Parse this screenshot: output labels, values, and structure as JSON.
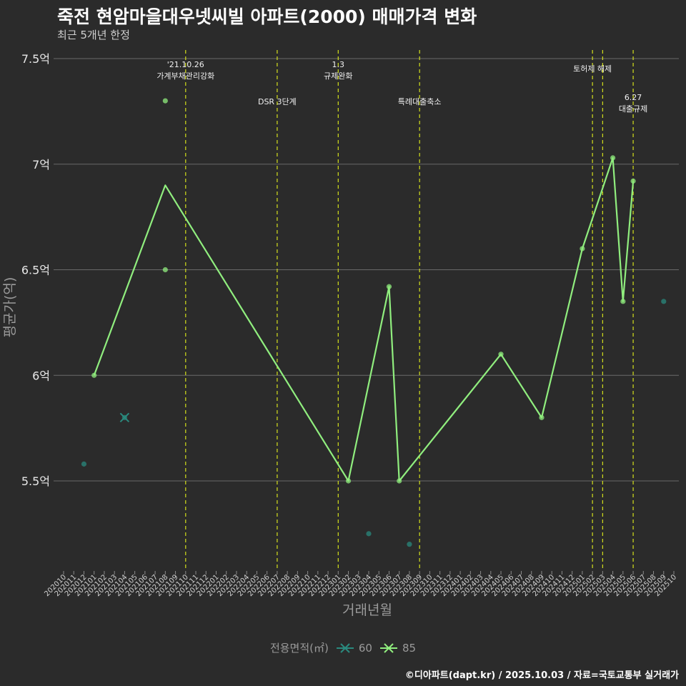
{
  "header": {
    "title": "죽전 현암마을대우넷씨빌 아파트(2000) 매매가격 변화",
    "subtitle": "최근 5개년 한정"
  },
  "caption": "©디아파트(dapt.kr) / 2025.10.03 / 자료=국토교통부 실거래가",
  "colors": {
    "background": "#2b2b2b",
    "grid": "#6a6a6a",
    "series_60": "#2a8a7e",
    "series_85": "#90ee7e",
    "event_line": "#d4e01c"
  },
  "chart_data": {
    "type": "line",
    "xlabel": "거래년월",
    "ylabel": "평균가(억)",
    "x_categories": [
      "202010",
      "202011",
      "202012",
      "202101",
      "202102",
      "202103",
      "202104",
      "202105",
      "202106",
      "202107",
      "202108",
      "202109",
      "202110",
      "202111",
      "202112",
      "202201",
      "202202",
      "202203",
      "202204",
      "202205",
      "202206",
      "202207",
      "202208",
      "202209",
      "202210",
      "202211",
      "202212",
      "202301",
      "202302",
      "202303",
      "202304",
      "202305",
      "202306",
      "202307",
      "202308",
      "202309",
      "202310",
      "202311",
      "202312",
      "202401",
      "202402",
      "202403",
      "202404",
      "202405",
      "202406",
      "202407",
      "202408",
      "202409",
      "202410",
      "202411",
      "202412",
      "202501",
      "202502",
      "202503",
      "202504",
      "202505",
      "202506",
      "202507",
      "202508",
      "202509",
      "202510"
    ],
    "yticks": [
      5.5,
      6,
      6.5,
      7,
      7.5
    ],
    "ytick_labels": [
      "5.5억",
      "6억",
      "6.5억",
      "7억",
      "7.5억"
    ],
    "ylim": [
      5.05,
      7.6
    ],
    "legend_title": "전용면적(㎡)",
    "series": [
      {
        "name": "60",
        "line": [
          {
            "x": "202104",
            "y": 5.8
          }
        ],
        "points": [
          {
            "x": "202012",
            "y": 5.58
          },
          {
            "x": "202104",
            "y": 5.8
          },
          {
            "x": "202304",
            "y": 5.25
          },
          {
            "x": "202308",
            "y": 5.2
          },
          {
            "x": "202509",
            "y": 6.35
          }
        ]
      },
      {
        "name": "85",
        "line": [
          {
            "x": "202101",
            "y": 6.0
          },
          {
            "x": "202108",
            "y": 6.9
          },
          {
            "x": "202302",
            "y": 5.5
          },
          {
            "x": "202306",
            "y": 6.42
          },
          {
            "x": "202307",
            "y": 5.5
          },
          {
            "x": "202405",
            "y": 6.1
          },
          {
            "x": "202409",
            "y": 5.8
          },
          {
            "x": "202501",
            "y": 6.6
          },
          {
            "x": "202504",
            "y": 7.03
          },
          {
            "x": "202505",
            "y": 6.35
          },
          {
            "x": "202506",
            "y": 6.92
          }
        ],
        "points": [
          {
            "x": "202101",
            "y": 6.0
          },
          {
            "x": "202108",
            "y": 7.3
          },
          {
            "x": "202108",
            "y": 6.5
          },
          {
            "x": "202302",
            "y": 5.5
          },
          {
            "x": "202306",
            "y": 6.42
          },
          {
            "x": "202307",
            "y": 5.5
          },
          {
            "x": "202405",
            "y": 6.1
          },
          {
            "x": "202409",
            "y": 5.8
          },
          {
            "x": "202501",
            "y": 6.6
          },
          {
            "x": "202504",
            "y": 7.03
          },
          {
            "x": "202505",
            "y": 6.35
          },
          {
            "x": "202506",
            "y": 6.92
          }
        ]
      }
    ],
    "events": [
      {
        "x": "202110",
        "lines": [
          "'21.10.26",
          "가계부채관리강화"
        ],
        "level": 1
      },
      {
        "x": "202207",
        "lines": [
          "DSR 3단계"
        ],
        "level": 2
      },
      {
        "x": "202301",
        "lines": [
          "1.3",
          "규제완화"
        ],
        "level": 1
      },
      {
        "x": "202309",
        "lines": [
          "특례대출축소"
        ],
        "level": 2
      },
      {
        "x": "202502",
        "lines": [
          "토허제 해제"
        ],
        "level": 1
      },
      {
        "x": "202503",
        "lines": [],
        "level": 1
      },
      {
        "x": "202506",
        "lines": [
          "6.27",
          "대출규제"
        ],
        "level": 2
      }
    ]
  }
}
